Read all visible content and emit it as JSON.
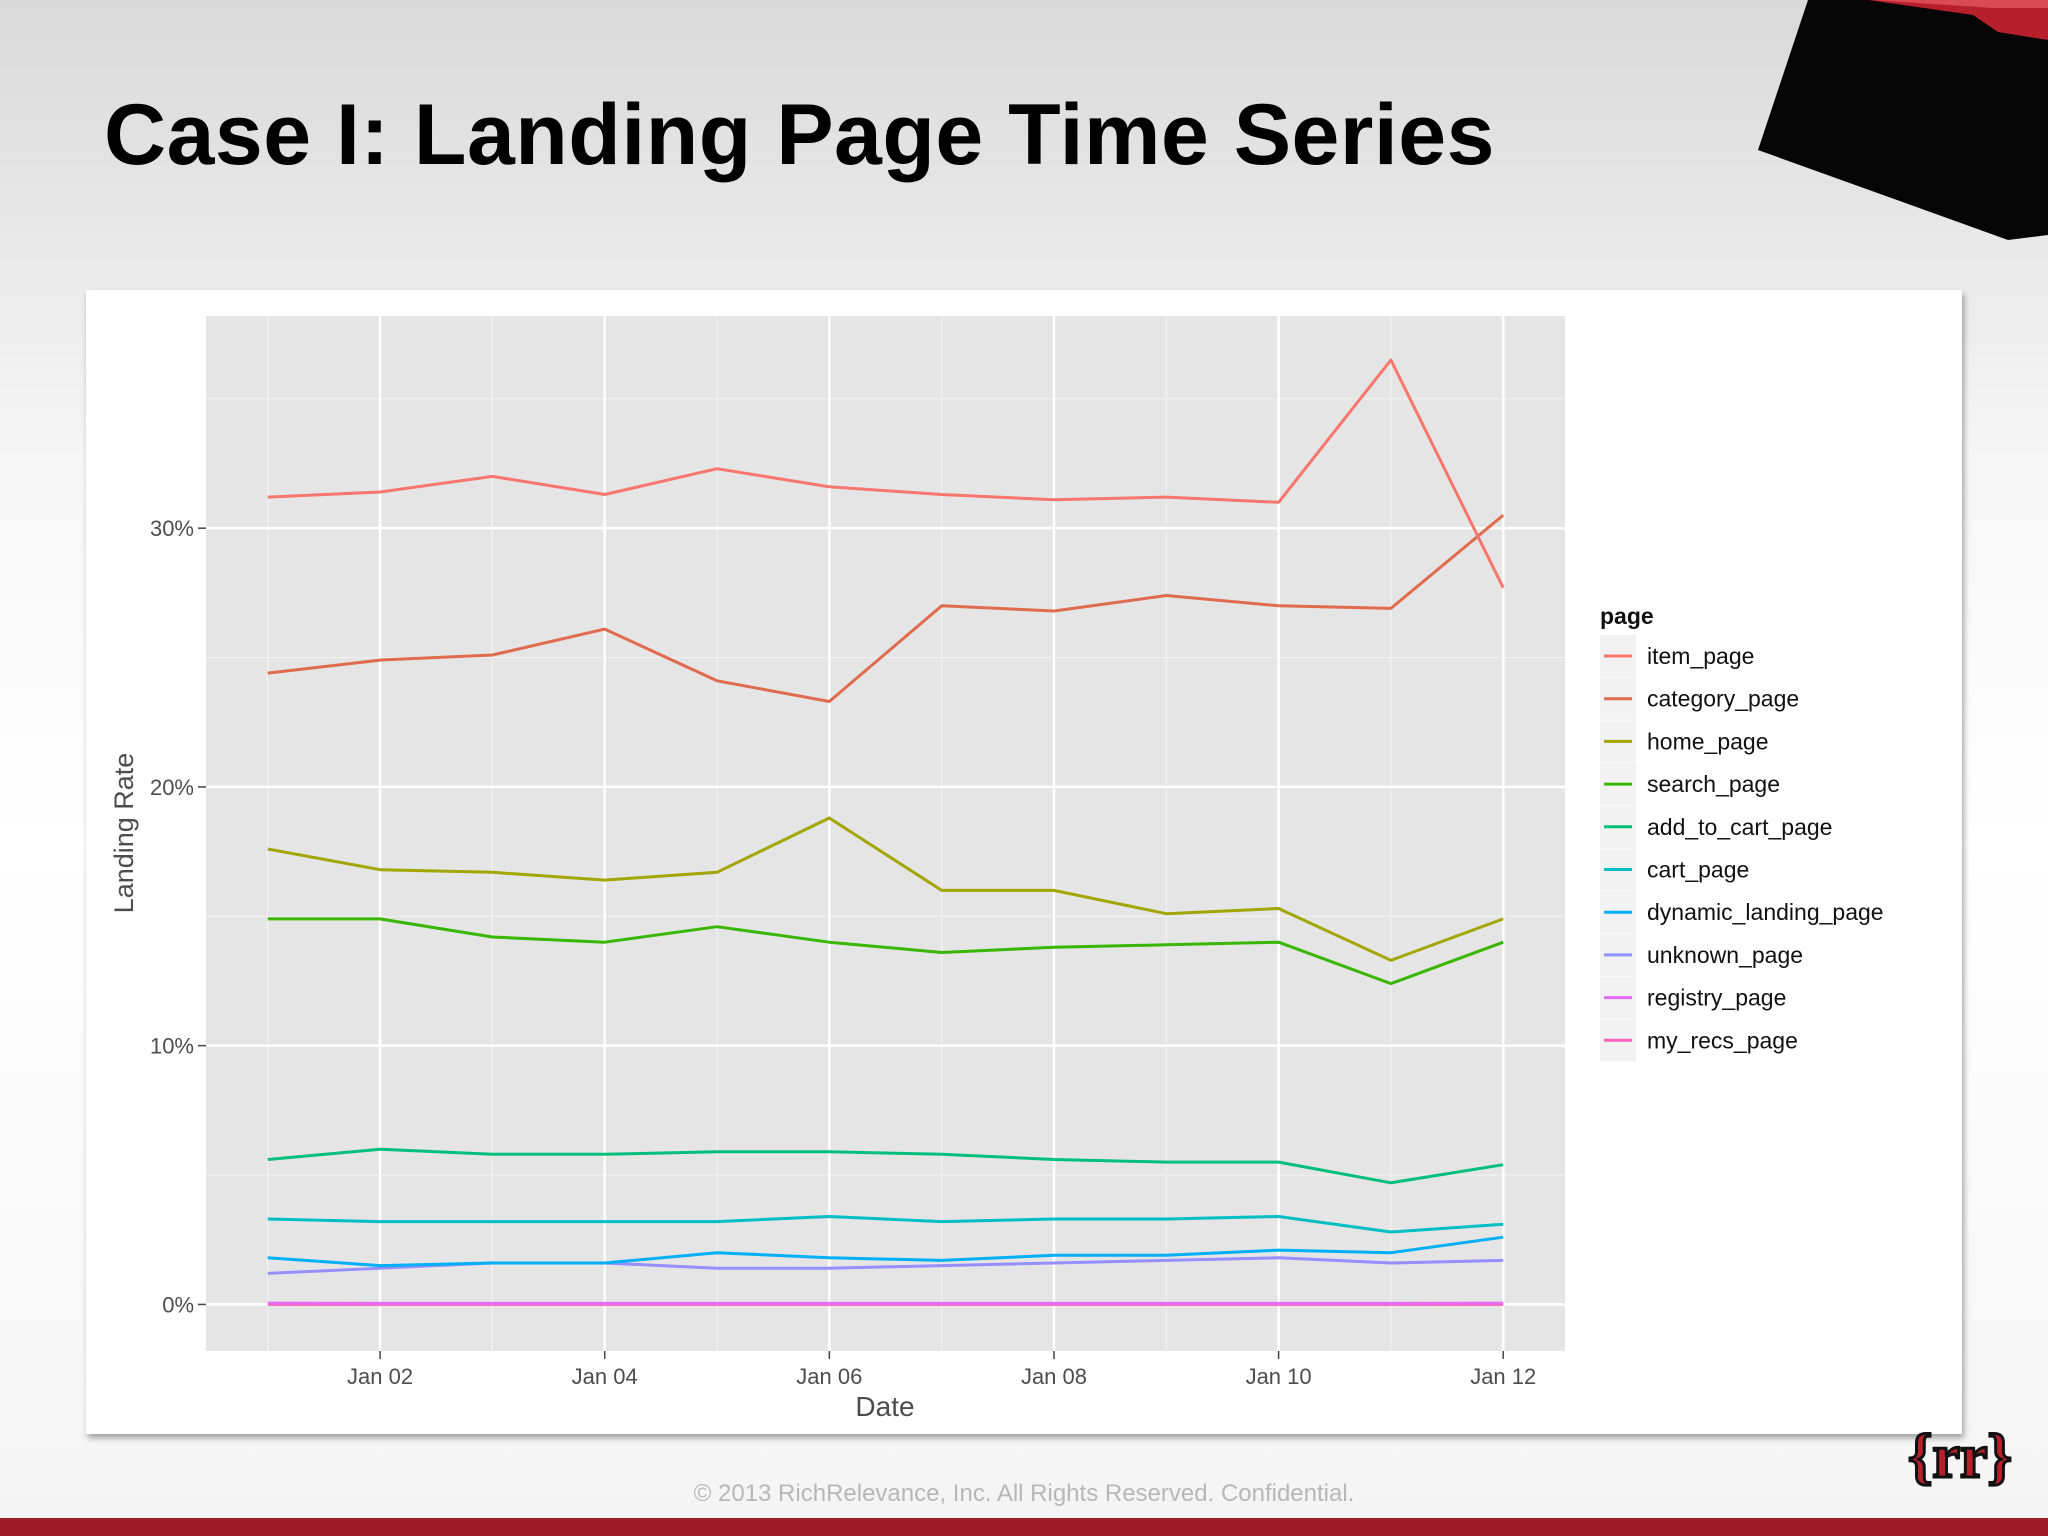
{
  "slide": {
    "title": "Case I:  Landing Page Time Series",
    "footer": "© 2013 RichRelevance, Inc. All Rights Reserved. Confidential.",
    "logo_text": "{rr}",
    "colors": {
      "accent": "#b81f2c",
      "bar": "#9b1c24",
      "panel": "#e5e5e5"
    }
  },
  "chart_data": {
    "type": "line",
    "title": "",
    "xlabel": "Date",
    "ylabel": "Landing Rate",
    "x": [
      1,
      2,
      3,
      4,
      5,
      6,
      7,
      8,
      9,
      10,
      11,
      12
    ],
    "xlim": [
      0.45,
      12.55
    ],
    "ylim": [
      -1.8,
      38.2
    ],
    "xticks": [
      {
        "value": 2,
        "label": "Jan 02"
      },
      {
        "value": 4,
        "label": "Jan 04"
      },
      {
        "value": 6,
        "label": "Jan 06"
      },
      {
        "value": 8,
        "label": "Jan 08"
      },
      {
        "value": 10,
        "label": "Jan 10"
      },
      {
        "value": 12,
        "label": "Jan 12"
      }
    ],
    "yticks": [
      {
        "value": 0,
        "label": "0%"
      },
      {
        "value": 10,
        "label": "10%"
      },
      {
        "value": 20,
        "label": "20%"
      },
      {
        "value": 30,
        "label": "30%"
      }
    ],
    "grid": true,
    "legend_title": "page",
    "legend_position": "right",
    "series": [
      {
        "name": "item_page",
        "color": "#F8766D",
        "values": [
          31.2,
          31.4,
          32.0,
          31.3,
          32.3,
          31.6,
          31.3,
          31.1,
          31.2,
          31.0,
          36.5,
          27.7
        ]
      },
      {
        "name": "category_page",
        "color": "#E06B4F",
        "values": [
          24.4,
          24.9,
          25.1,
          26.1,
          24.1,
          23.3,
          27.0,
          26.8,
          27.4,
          27.0,
          26.9,
          30.5
        ]
      },
      {
        "name": "home_page",
        "color": "#A3A500",
        "values": [
          17.6,
          16.8,
          16.7,
          16.4,
          16.7,
          18.8,
          16.0,
          16.0,
          15.1,
          15.3,
          13.3,
          14.9
        ]
      },
      {
        "name": "search_page",
        "color": "#39B600",
        "values": [
          14.9,
          14.9,
          14.2,
          14.0,
          14.6,
          14.0,
          13.6,
          13.8,
          13.9,
          14.0,
          12.4,
          14.0
        ]
      },
      {
        "name": "add_to_cart_page",
        "color": "#00BF7D",
        "values": [
          5.6,
          6.0,
          5.8,
          5.8,
          5.9,
          5.9,
          5.8,
          5.6,
          5.5,
          5.5,
          4.7,
          5.4
        ]
      },
      {
        "name": "cart_page",
        "color": "#00BFC4",
        "values": [
          3.3,
          3.2,
          3.2,
          3.2,
          3.2,
          3.4,
          3.2,
          3.3,
          3.3,
          3.4,
          2.8,
          3.1
        ]
      },
      {
        "name": "dynamic_landing_page",
        "color": "#00B0F6",
        "values": [
          1.8,
          1.5,
          1.6,
          1.6,
          2.0,
          1.8,
          1.7,
          1.9,
          1.9,
          2.1,
          2.0,
          2.6
        ]
      },
      {
        "name": "unknown_page",
        "color": "#9590FF",
        "values": [
          1.2,
          1.4,
          1.6,
          1.6,
          1.4,
          1.4,
          1.5,
          1.6,
          1.7,
          1.8,
          1.6,
          1.7
        ]
      },
      {
        "name": "registry_page",
        "color": "#E76BF3",
        "values": [
          0.05,
          0.04,
          0.04,
          0.04,
          0.04,
          0.04,
          0.04,
          0.04,
          0.04,
          0.04,
          0.04,
          0.05
        ]
      },
      {
        "name": "my_recs_page",
        "color": "#FF62BC",
        "values": [
          0.0,
          0.0,
          0.0,
          0.0,
          0.0,
          0.0,
          0.0,
          0.0,
          0.0,
          0.0,
          0.0,
          0.0
        ]
      }
    ]
  }
}
